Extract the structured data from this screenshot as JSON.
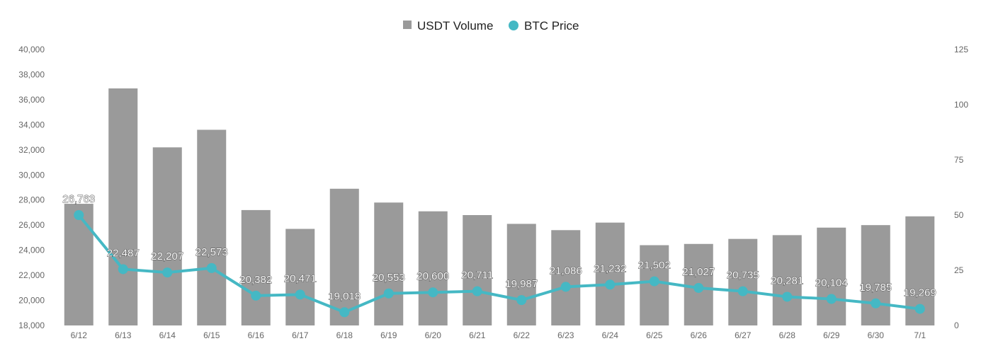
{
  "chart_data": {
    "type": "bar+line",
    "legend": {
      "placement": "top-center"
    },
    "colors": {
      "bar": "#9a9a9a",
      "line": "#45b8c4",
      "tick": "#666666"
    },
    "categories": [
      "6/12",
      "6/13",
      "6/14",
      "6/15",
      "6/16",
      "6/17",
      "6/18",
      "6/19",
      "6/20",
      "6/21",
      "6/22",
      "6/23",
      "6/24",
      "6/25",
      "6/26",
      "6/27",
      "6/28",
      "6/29",
      "6/30",
      "7/1"
    ],
    "y_left": {
      "min": 18000,
      "max": 40000,
      "ticks": [
        "18,000",
        "20,000",
        "22,000",
        "24,000",
        "26,000",
        "28,000",
        "30,000",
        "32,000",
        "34,000",
        "36,000",
        "38,000",
        "40,000"
      ]
    },
    "y_right": {
      "min": 0,
      "max": 125,
      "ticks": [
        "0",
        "25",
        "50",
        "75",
        "100",
        "125"
      ]
    },
    "series": [
      {
        "name": "USDT Volume",
        "type": "bar",
        "axis": "left",
        "values": [
          27700,
          36900,
          32200,
          33600,
          27200,
          25700,
          28900,
          27800,
          27100,
          26800,
          26100,
          25600,
          26200,
          24400,
          24500,
          24900,
          25200,
          25800,
          26000,
          26700
        ]
      },
      {
        "name": "BTC Price",
        "type": "line",
        "axis": "right",
        "values": [
          50,
          25.5,
          24,
          26,
          13.5,
          14,
          6,
          14.5,
          15,
          15.5,
          11.5,
          17.5,
          18.5,
          20,
          17,
          15.5,
          13,
          12,
          10,
          7.5
        ],
        "labels": [
          "26,763",
          "22,487",
          "22,207",
          "22,573",
          "20,382",
          "20,471",
          "19,018",
          "20,553",
          "20,600",
          "20,711",
          "19,987",
          "21,086",
          "21,232",
          "21,502",
          "21,027",
          "20,735",
          "20,281",
          "20,104",
          "19,785",
          "19,269"
        ]
      }
    ]
  }
}
